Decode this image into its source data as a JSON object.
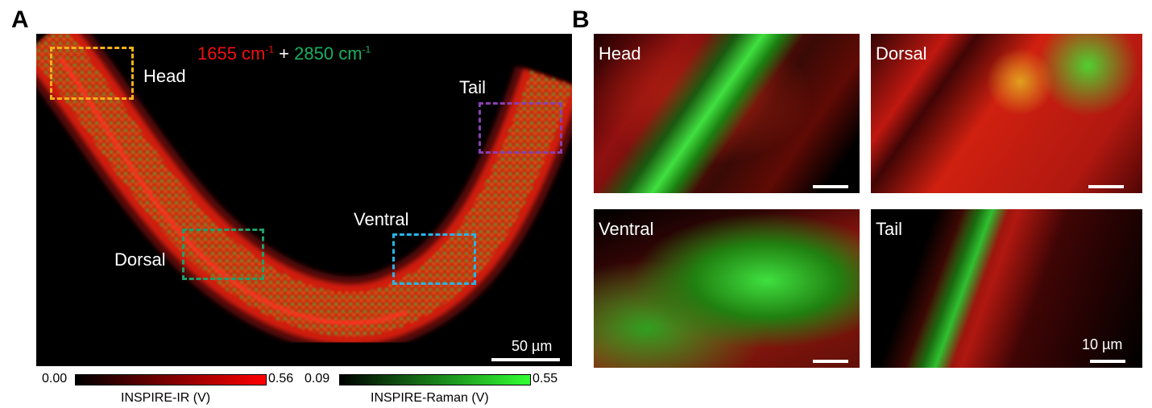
{
  "panel_a": {
    "letter": "A",
    "title": {
      "part1": "1655 cm",
      "sup1": "-1",
      "plus": " + ",
      "part2": "2850 cm",
      "sup2": "-1"
    },
    "region_labels": {
      "head": "Head",
      "tail": "Tail",
      "dorsal": "Dorsal",
      "ventral": "Ventral"
    },
    "box_colors": {
      "head": "#f5b21a",
      "tail": "#8a3fb0",
      "dorsal": "#1ea06a",
      "ventral": "#28b4e8"
    },
    "scale_bar": "50 µm",
    "colorbars": [
      {
        "min": "0.00",
        "max": "0.56",
        "label": "INSPIRE-IR (V)",
        "color": "#ff0000"
      },
      {
        "min": "0.09",
        "max": "0.55",
        "label": "INSPIRE-Raman (V)",
        "color": "#33ff33"
      }
    ]
  },
  "panel_b": {
    "letter": "B",
    "tiles": [
      {
        "label": "Head"
      },
      {
        "label": "Dorsal"
      },
      {
        "label": "Ventral"
      },
      {
        "label": "Tail"
      }
    ],
    "scale_bar": "10 µm"
  }
}
